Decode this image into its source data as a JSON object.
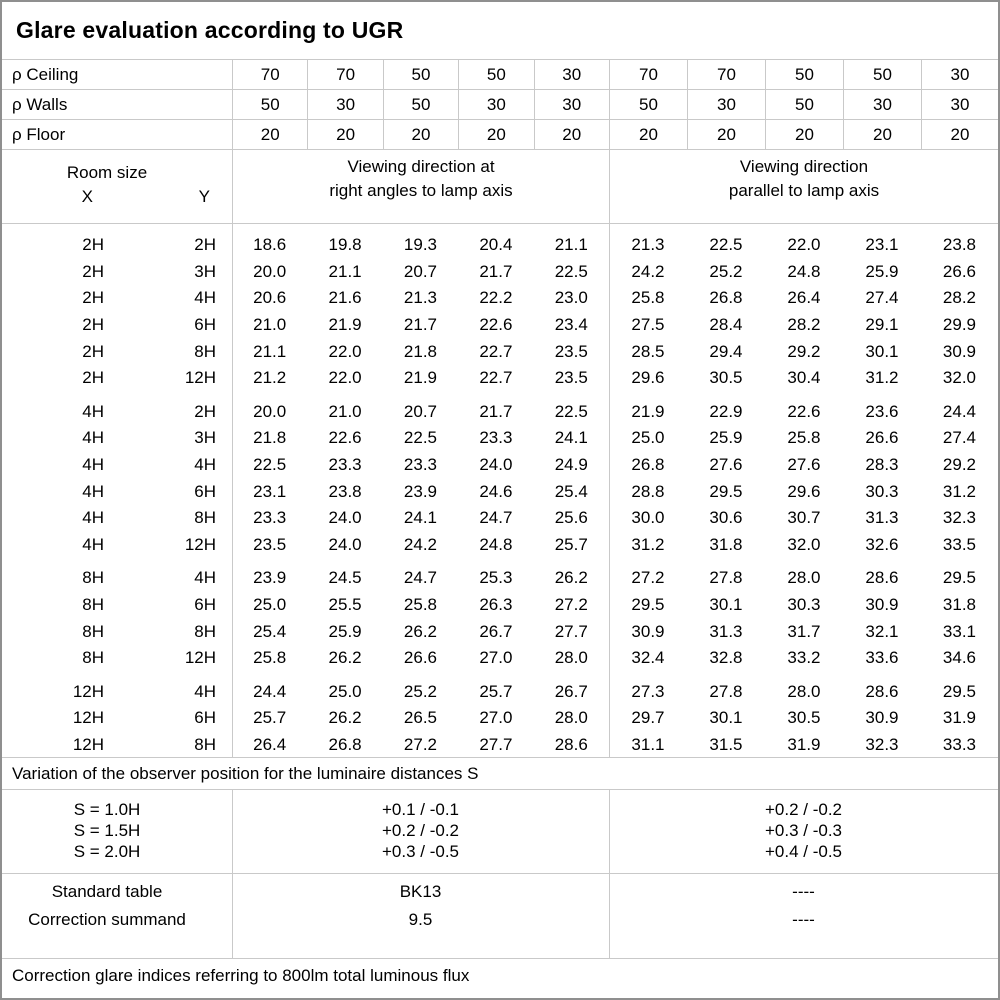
{
  "title": "Glare evaluation according to UGR",
  "colors": {
    "grid_line": "#c9c9c9",
    "outer_border": "#8f8f8f",
    "text": "#000000",
    "background": "#ffffff"
  },
  "reflectance_rows": [
    {
      "label": "ρ Ceiling",
      "values": [
        "70",
        "70",
        "50",
        "50",
        "30",
        "70",
        "70",
        "50",
        "50",
        "30"
      ]
    },
    {
      "label": "ρ Walls",
      "values": [
        "50",
        "30",
        "50",
        "30",
        "30",
        "50",
        "30",
        "50",
        "30",
        "30"
      ]
    },
    {
      "label": "ρ Floor",
      "values": [
        "20",
        "20",
        "20",
        "20",
        "20",
        "20",
        "20",
        "20",
        "20",
        "20"
      ]
    }
  ],
  "header": {
    "room_size_label": "Room size",
    "x_label": "X",
    "y_label": "Y",
    "group1_line1": "Viewing direction at",
    "group1_line2": "right angles to lamp axis",
    "group2_line1": "Viewing direction",
    "group2_line2": "parallel to lamp axis"
  },
  "ugr_blocks": [
    {
      "rows": [
        {
          "x": "2H",
          "y": "2H",
          "values": [
            "18.6",
            "19.8",
            "19.3",
            "20.4",
            "21.1",
            "21.3",
            "22.5",
            "22.0",
            "23.1",
            "23.8"
          ]
        },
        {
          "x": "2H",
          "y": "3H",
          "values": [
            "20.0",
            "21.1",
            "20.7",
            "21.7",
            "22.5",
            "24.2",
            "25.2",
            "24.8",
            "25.9",
            "26.6"
          ]
        },
        {
          "x": "2H",
          "y": "4H",
          "values": [
            "20.6",
            "21.6",
            "21.3",
            "22.2",
            "23.0",
            "25.8",
            "26.8",
            "26.4",
            "27.4",
            "28.2"
          ]
        },
        {
          "x": "2H",
          "y": "6H",
          "values": [
            "21.0",
            "21.9",
            "21.7",
            "22.6",
            "23.4",
            "27.5",
            "28.4",
            "28.2",
            "29.1",
            "29.9"
          ]
        },
        {
          "x": "2H",
          "y": "8H",
          "values": [
            "21.1",
            "22.0",
            "21.8",
            "22.7",
            "23.5",
            "28.5",
            "29.4",
            "29.2",
            "30.1",
            "30.9"
          ]
        },
        {
          "x": "2H",
          "y": "12H",
          "values": [
            "21.2",
            "22.0",
            "21.9",
            "22.7",
            "23.5",
            "29.6",
            "30.5",
            "30.4",
            "31.2",
            "32.0"
          ]
        }
      ]
    },
    {
      "rows": [
        {
          "x": "4H",
          "y": "2H",
          "values": [
            "20.0",
            "21.0",
            "20.7",
            "21.7",
            "22.5",
            "21.9",
            "22.9",
            "22.6",
            "23.6",
            "24.4"
          ]
        },
        {
          "x": "4H",
          "y": "3H",
          "values": [
            "21.8",
            "22.6",
            "22.5",
            "23.3",
            "24.1",
            "25.0",
            "25.9",
            "25.8",
            "26.6",
            "27.4"
          ]
        },
        {
          "x": "4H",
          "y": "4H",
          "values": [
            "22.5",
            "23.3",
            "23.3",
            "24.0",
            "24.9",
            "26.8",
            "27.6",
            "27.6",
            "28.3",
            "29.2"
          ]
        },
        {
          "x": "4H",
          "y": "6H",
          "values": [
            "23.1",
            "23.8",
            "23.9",
            "24.6",
            "25.4",
            "28.8",
            "29.5",
            "29.6",
            "30.3",
            "31.2"
          ]
        },
        {
          "x": "4H",
          "y": "8H",
          "values": [
            "23.3",
            "24.0",
            "24.1",
            "24.7",
            "25.6",
            "30.0",
            "30.6",
            "30.7",
            "31.3",
            "32.3"
          ]
        },
        {
          "x": "4H",
          "y": "12H",
          "values": [
            "23.5",
            "24.0",
            "24.2",
            "24.8",
            "25.7",
            "31.2",
            "31.8",
            "32.0",
            "32.6",
            "33.5"
          ]
        }
      ]
    },
    {
      "rows": [
        {
          "x": "8H",
          "y": "4H",
          "values": [
            "23.9",
            "24.5",
            "24.7",
            "25.3",
            "26.2",
            "27.2",
            "27.8",
            "28.0",
            "28.6",
            "29.5"
          ]
        },
        {
          "x": "8H",
          "y": "6H",
          "values": [
            "25.0",
            "25.5",
            "25.8",
            "26.3",
            "27.2",
            "29.5",
            "30.1",
            "30.3",
            "30.9",
            "31.8"
          ]
        },
        {
          "x": "8H",
          "y": "8H",
          "values": [
            "25.4",
            "25.9",
            "26.2",
            "26.7",
            "27.7",
            "30.9",
            "31.3",
            "31.7",
            "32.1",
            "33.1"
          ]
        },
        {
          "x": "8H",
          "y": "12H",
          "values": [
            "25.8",
            "26.2",
            "26.6",
            "27.0",
            "28.0",
            "32.4",
            "32.8",
            "33.2",
            "33.6",
            "34.6"
          ]
        }
      ]
    },
    {
      "rows": [
        {
          "x": "12H",
          "y": "4H",
          "values": [
            "24.4",
            "25.0",
            "25.2",
            "25.7",
            "26.7",
            "27.3",
            "27.8",
            "28.0",
            "28.6",
            "29.5"
          ]
        },
        {
          "x": "12H",
          "y": "6H",
          "values": [
            "25.7",
            "26.2",
            "26.5",
            "27.0",
            "28.0",
            "29.7",
            "30.1",
            "30.5",
            "30.9",
            "31.9"
          ]
        },
        {
          "x": "12H",
          "y": "8H",
          "values": [
            "26.4",
            "26.8",
            "27.2",
            "27.7",
            "28.6",
            "31.1",
            "31.5",
            "31.9",
            "32.3",
            "33.3"
          ]
        }
      ]
    }
  ],
  "variation_note": "Variation of the observer position for the luminaire distances S",
  "variation_rows": [
    {
      "label": "S = 1.0H",
      "right_angles": "+0.1 / -0.1",
      "parallel": "+0.2 / -0.2"
    },
    {
      "label": "S = 1.5H",
      "right_angles": "+0.2 / -0.2",
      "parallel": "+0.3 / -0.3"
    },
    {
      "label": "S = 2.0H",
      "right_angles": "+0.3 / -0.5",
      "parallel": "+0.4 / -0.5"
    }
  ],
  "summary_rows": [
    {
      "label": "Standard table",
      "right_angles": "BK13",
      "parallel": "----"
    },
    {
      "label": "Correction summand",
      "right_angles": "9.5",
      "parallel": "----"
    }
  ],
  "footer_note": "Correction glare indices referring to 800lm total luminous flux"
}
